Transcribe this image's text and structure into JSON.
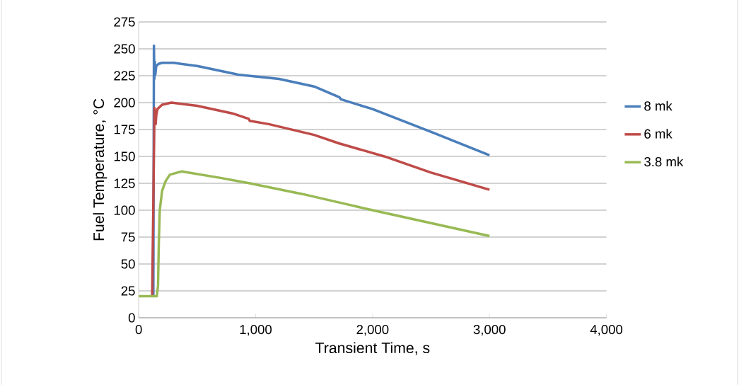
{
  "chart_data": {
    "type": "line",
    "xlabel": "Transient Time, s",
    "ylabel": "Fuel Temperature, °C",
    "xlim": [
      0,
      4000
    ],
    "xticks": [
      0,
      {
        "value": 1000,
        "label": "1,000"
      },
      {
        "value": 2000,
        "label": "2,000"
      },
      {
        "value": 3000,
        "label": "3,000"
      },
      {
        "value": 4000,
        "label": "4,000"
      }
    ],
    "ylim": [
      0,
      275
    ],
    "yticks": [
      0,
      25,
      50,
      75,
      100,
      125,
      150,
      175,
      200,
      225,
      250,
      275
    ],
    "grid": "y",
    "legend": "right",
    "marker": "none",
    "line_style": "solid",
    "series": [
      {
        "name": "8 mk",
        "color": "#4a7ebb",
        "x": [
          125,
          130,
          134,
          138,
          142,
          150,
          170,
          200,
          300,
          500,
          810,
          850,
          1200,
          1500,
          1716,
          1730,
          2000,
          2520,
          3000
        ],
        "values": [
          20,
          253,
          222,
          238,
          226,
          234,
          236,
          237,
          237,
          234,
          227,
          226,
          222,
          215,
          205,
          203,
          194,
          172,
          151
        ]
      },
      {
        "name": "6 mk",
        "color": "#be4b48",
        "x": [
          115,
          135,
          140,
          145,
          150,
          160,
          200,
          280,
          500,
          800,
          940,
          950,
          1112,
          1500,
          1716,
          2100,
          2500,
          3000
        ],
        "values": [
          20,
          195,
          190,
          180,
          188,
          194,
          198,
          200,
          197,
          190,
          185,
          183,
          180,
          170,
          162,
          150,
          135,
          119
        ]
      },
      {
        "name": "3.8 mk",
        "color": "#98b954",
        "x": [
          0,
          155,
          165,
          172,
          180,
          200,
          230,
          266,
          330,
          368,
          700,
          950,
          1400,
          1800,
          2000,
          2500,
          3000
        ],
        "values": [
          20,
          20,
          30,
          70,
          100,
          118,
          127,
          133,
          135,
          136,
          130,
          125,
          115,
          105,
          100,
          88,
          76
        ]
      }
    ]
  }
}
